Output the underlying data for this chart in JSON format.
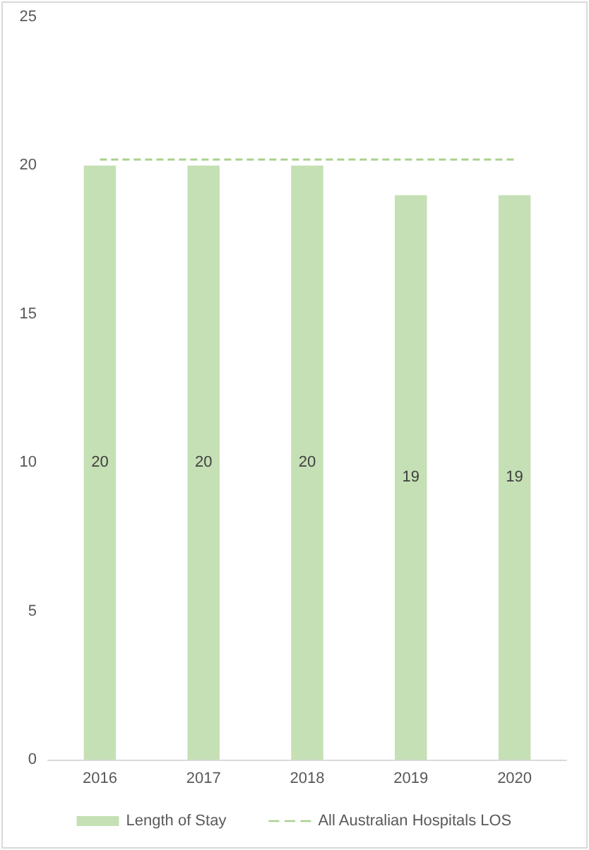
{
  "chart_data": {
    "type": "bar",
    "categories": [
      "2016",
      "2017",
      "2018",
      "2019",
      "2020"
    ],
    "series": [
      {
        "name": "Length of Stay",
        "color": "#c5e0b4",
        "values": [
          20,
          20,
          20,
          19,
          19
        ],
        "value_labels": [
          "20",
          "20",
          "20",
          "19",
          "19"
        ]
      },
      {
        "name": "All Australian Hospitals LOS",
        "type": "line",
        "color": "#a9d18e",
        "line_style": "dashed",
        "marker": "none",
        "values": [
          20.2,
          20.2,
          20.2,
          20.2,
          20.2
        ]
      }
    ],
    "ylim": [
      0,
      25
    ],
    "yticks": [
      0,
      5,
      10,
      15,
      20,
      25
    ],
    "grid": false,
    "legend": "bottom"
  }
}
